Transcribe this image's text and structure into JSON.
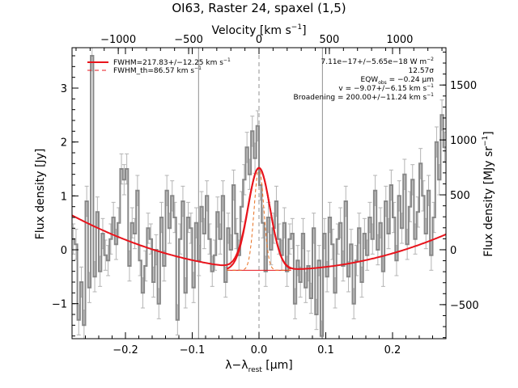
{
  "chart_data": {
    "type": "line",
    "title": "OI63, Raster 24, spaxel (1,5)",
    "xlabel": "λ−λ",
    "xlabel_sub": "rest",
    "xlabel_unit": " [μm]",
    "ylabel": "Flux density [Jy]",
    "ylabel_right": "Flux density [MJy sr",
    "ylabel_right_sup": "−1",
    "ylabel_right_close": "]",
    "xlabel_top": "Velocity [km s",
    "xlabel_top_sup": "−1",
    "xlabel_top_close": "]",
    "xlim": [
      -0.28,
      0.28
    ],
    "ylim": [
      -1.65,
      3.75
    ],
    "ylim_right": [
      -810,
      1840
    ],
    "x_ticks": [
      -0.2,
      -0.1,
      0.0,
      0.1,
      0.2
    ],
    "x_tick_labels": [
      "−0.2",
      "−0.1",
      "0.0",
      "0.1",
      "0.2"
    ],
    "y_ticks": [
      -1,
      0,
      1,
      2,
      3
    ],
    "y_tick_labels": [
      "−1",
      "0",
      "1",
      "2",
      "3"
    ],
    "y_right_ticks": [
      -500,
      0,
      500,
      1000,
      1500
    ],
    "y_right_tick_labels": [
      "−500",
      "0",
      "500",
      "1000",
      "1500"
    ],
    "top_ticks": [
      -1000,
      -500,
      0,
      500,
      1000
    ],
    "top_tick_labels": [
      "−1000",
      "−500",
      "0",
      "500",
      "1000"
    ],
    "vlines": [
      -0.0905,
      0.0,
      0.095
    ],
    "legend": {
      "placement": "top-left",
      "entries": [
        {
          "text": "FWHM=217.83+/−12.25 km s",
          "sup": "−1",
          "style": "solid",
          "color": "#e8141c"
        },
        {
          "text": "FWHM_th=86.57 km s",
          "sup": "−1",
          "style": "dashed",
          "color": "#e8141c"
        }
      ]
    },
    "annotations": [
      {
        "text": "7.11e−17+/−5.65e−18 W m",
        "sup": "−2"
      },
      {
        "text": "12.57σ",
        "sup": ""
      },
      {
        "text": "EQW",
        "sub": "obs",
        "tail": " = −0.24 μm"
      },
      {
        "text": "v = −9.07+/−6.15 km s",
        "sup": "−1"
      },
      {
        "text": "Broadening = 200.00+/−11.24 km s",
        "sup": "−1"
      }
    ],
    "colors": {
      "data": "#888888",
      "fit": "#e8141c",
      "thermal": "#e87020",
      "vline": "#909090"
    },
    "data_x": [
      -0.278,
      -0.274,
      -0.27,
      -0.266,
      -0.262,
      -0.258,
      -0.254,
      -0.25,
      -0.246,
      -0.242,
      -0.238,
      -0.234,
      -0.23,
      -0.226,
      -0.222,
      -0.218,
      -0.214,
      -0.21,
      -0.206,
      -0.202,
      -0.198,
      -0.194,
      -0.19,
      -0.186,
      -0.182,
      -0.178,
      -0.174,
      -0.17,
      -0.166,
      -0.162,
      -0.158,
      -0.154,
      -0.15,
      -0.146,
      -0.142,
      -0.138,
      -0.134,
      -0.13,
      -0.126,
      -0.122,
      -0.118,
      -0.114,
      -0.11,
      -0.106,
      -0.102,
      -0.098,
      -0.094,
      -0.09,
      -0.086,
      -0.082,
      -0.078,
      -0.074,
      -0.07,
      -0.066,
      -0.062,
      -0.058,
      -0.054,
      -0.05,
      -0.046,
      -0.042,
      -0.038,
      -0.034,
      -0.03,
      -0.026,
      -0.022,
      -0.018,
      -0.014,
      -0.01,
      -0.006,
      -0.002,
      0.002,
      0.006,
      0.01,
      0.014,
      0.018,
      0.022,
      0.026,
      0.03,
      0.034,
      0.038,
      0.042,
      0.046,
      0.05,
      0.054,
      0.058,
      0.062,
      0.066,
      0.07,
      0.074,
      0.078,
      0.082,
      0.086,
      0.09,
      0.094,
      0.098,
      0.102,
      0.106,
      0.11,
      0.114,
      0.118,
      0.122,
      0.126,
      0.13,
      0.134,
      0.138,
      0.142,
      0.146,
      0.15,
      0.154,
      0.158,
      0.162,
      0.166,
      0.17,
      0.174,
      0.178,
      0.182,
      0.186,
      0.19,
      0.194,
      0.198,
      0.202,
      0.206,
      0.21,
      0.214,
      0.218,
      0.222,
      0.226,
      0.23,
      0.234,
      0.238,
      0.242,
      0.246,
      0.25,
      0.254,
      0.258,
      0.262,
      0.266,
      0.27,
      0.274,
      0.278
    ],
    "data_y": [
      0.2,
      0.1,
      -1.3,
      -0.6,
      -1.4,
      0.9,
      -0.7,
      3.6,
      -0.5,
      0.7,
      -0.4,
      0.3,
      -0.1,
      -0.2,
      0.2,
      0.6,
      0.1,
      0.5,
      1.5,
      1.3,
      1.5,
      -0.3,
      0.5,
      0.3,
      1.1,
      -0.2,
      -0.8,
      -0.3,
      0.4,
      0.2,
      -0.6,
      0.0,
      -1.0,
      0.6,
      -0.3,
      1.1,
      0.4,
      1.0,
      0.6,
      -1.3,
      0.2,
      0.9,
      -0.8,
      0.6,
      0.4,
      -0.7,
      0.5,
      -0.2,
      0.8,
      0.3,
      1.0,
      0.2,
      -0.4,
      -0.1,
      0.7,
      0.2,
      1.0,
      -0.6,
      0.4,
      0.0,
      1.2,
      0.3,
      -0.1,
      0.8,
      1.3,
      1.9,
      1.4,
      2.2,
      1.7,
      2.3,
      1.2,
      0.5,
      -0.4,
      0.6,
      0.0,
      0.4,
      0.9,
      0.2,
      -0.1,
      0.5,
      -0.4,
      0.2,
      0.3,
      -1.0,
      -0.2,
      -0.6,
      0.3,
      -0.7,
      -0.3,
      -0.9,
      0.4,
      -1.2,
      -0.2,
      -1.6,
      0.3,
      -0.5,
      0.6,
      0.1,
      -0.8,
      0.2,
      0.5,
      -0.3,
      0.9,
      -0.5,
      0.1,
      -1.0,
      -0.2,
      0.4,
      -0.6,
      0.3,
      -0.1,
      0.6,
      0.2,
      1.1,
      0.0,
      0.5,
      -0.4,
      0.9,
      0.3,
      1.2,
      0.6,
      -0.2,
      1.0,
      0.4,
      1.4,
      0.1,
      0.8,
      1.3,
      0.2,
      0.7,
      1.6,
      1.0,
      0.3,
      1.1,
      -0.1,
      0.6,
      2.0,
      1.3,
      2.5,
      1.9
    ],
    "data_err": 0.28,
    "fit": {
      "continuum": {
        "center": 0.03,
        "min": -0.37,
        "curvature": 10.5
      },
      "gaussian": {
        "center": 0.0,
        "amplitude": 1.9,
        "sigma": 0.0165,
        "base": -0.38,
        "x_range": [
          -0.048,
          0.048
        ]
      },
      "thermal_gaussian": {
        "center": 0.0,
        "amplitude": 1.9,
        "sigma": 0.0072,
        "base": -0.38
      }
    }
  }
}
